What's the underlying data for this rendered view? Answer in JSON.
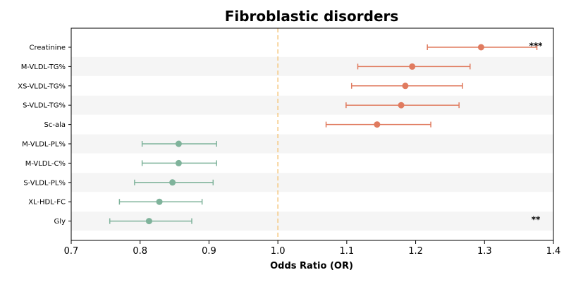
{
  "chart_data": {
    "type": "forest",
    "title": "Fibroblastic disorders",
    "xlabel": "Odds Ratio (OR)",
    "ylabel": "",
    "xlim": [
      0.7,
      1.4
    ],
    "x_ticks": [
      "0.7",
      "0.8",
      "0.9",
      "1.0",
      "1.1",
      "1.2",
      "1.3",
      "1.4"
    ],
    "reference_line": 1.0,
    "reference_line_color": "#f5c77e",
    "positive_color": "#e07b5f",
    "negative_color": "#7fb39b",
    "band_color": "#f5f5f5",
    "grid": false,
    "rows": [
      {
        "label": "Creatinine",
        "or": 1.295,
        "lower": 1.217,
        "upper": 1.376,
        "sig": "***"
      },
      {
        "label": "M-VLDL-TG%",
        "or": 1.195,
        "lower": 1.116,
        "upper": 1.279,
        "sig": ""
      },
      {
        "label": "XS-VLDL-TG%",
        "or": 1.185,
        "lower": 1.107,
        "upper": 1.268,
        "sig": ""
      },
      {
        "label": "S-VLDL-TG%",
        "or": 1.179,
        "lower": 1.099,
        "upper": 1.263,
        "sig": ""
      },
      {
        "label": "Sc-ala",
        "or": 1.144,
        "lower": 1.07,
        "upper": 1.222,
        "sig": ""
      },
      {
        "label": "M-VLDL-PL%",
        "or": 0.856,
        "lower": 0.803,
        "upper": 0.911,
        "sig": ""
      },
      {
        "label": "M-VLDL-C%",
        "or": 0.856,
        "lower": 0.803,
        "upper": 0.911,
        "sig": ""
      },
      {
        "label": "S-VLDL-PL%",
        "or": 0.847,
        "lower": 0.792,
        "upper": 0.906,
        "sig": ""
      },
      {
        "label": "XL-HDL-FC",
        "or": 0.828,
        "lower": 0.77,
        "upper": 0.89,
        "sig": ""
      },
      {
        "label": "Gly",
        "or": 0.813,
        "lower": 0.756,
        "upper": 0.875,
        "sig": "**"
      }
    ]
  }
}
